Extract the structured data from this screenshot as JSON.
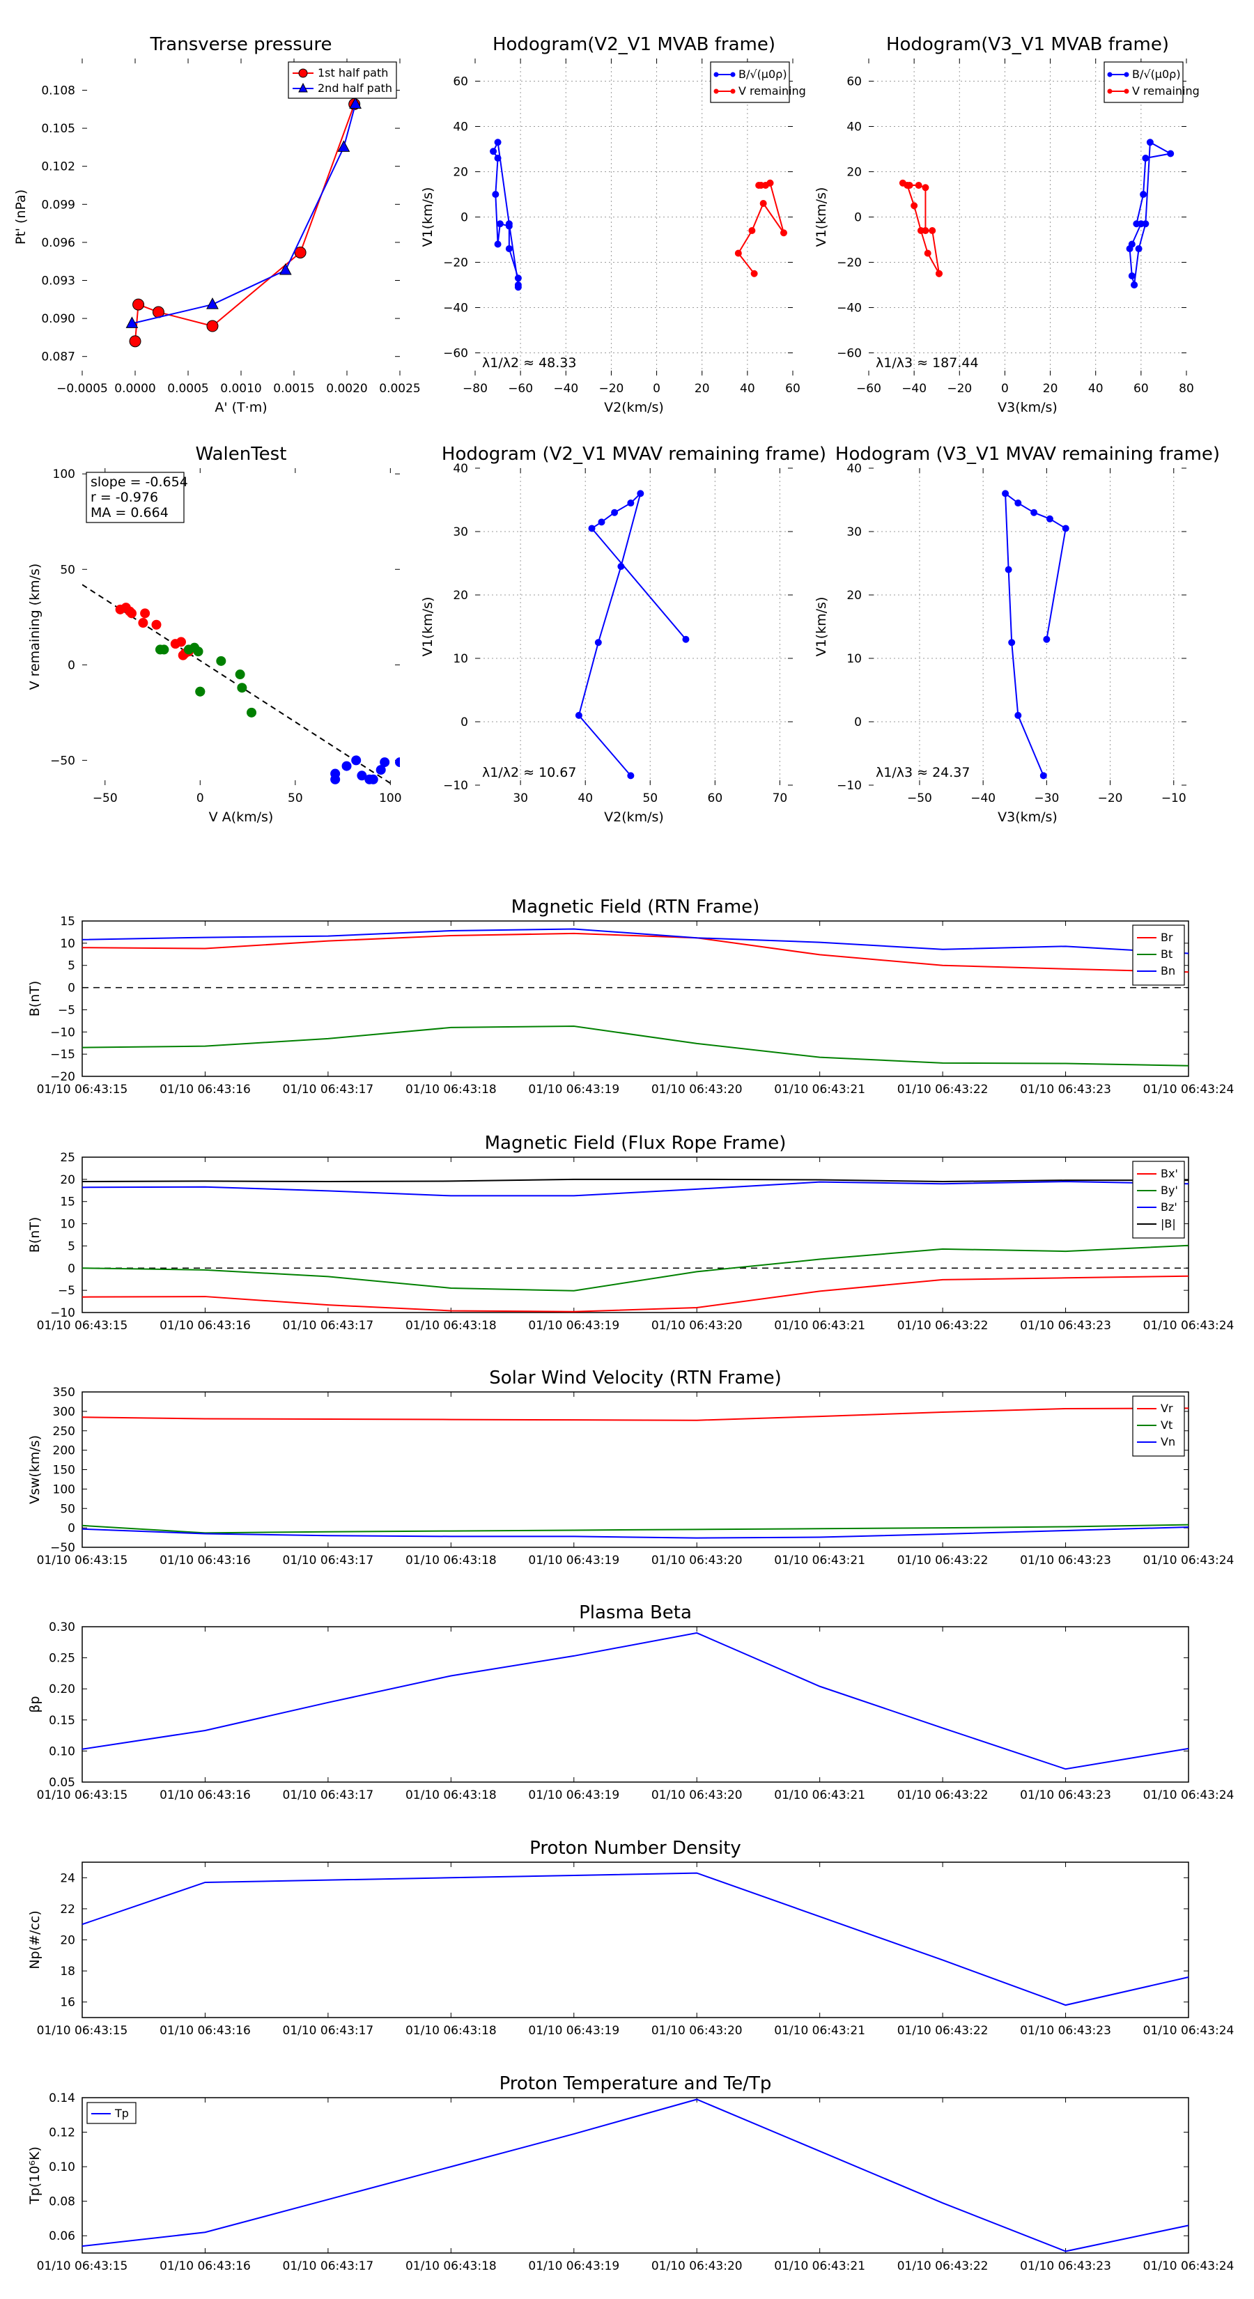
{
  "figure_title": "",
  "chart_data": [
    {
      "id": "pt",
      "type": "line",
      "title": "Transverse pressure",
      "xlabel": "A' (T·m)",
      "ylabel": "Pt' (nPa)",
      "xlim": [
        -0.0005,
        0.0025
      ],
      "ylim": [
        0.0855,
        0.1105
      ],
      "xticks": [
        -0.0005,
        0,
        0.0005,
        0.001,
        0.0015,
        0.002,
        0.0025
      ],
      "xticklabels": [
        "−0.0005",
        "0.0000",
        "0.0005",
        "0.0010",
        "0.0015",
        "0.0020",
        "0.0025"
      ],
      "yticks": [
        0.087,
        0.09,
        0.093,
        0.096,
        0.099,
        0.102,
        0.105,
        0.108
      ],
      "yticklabels": [
        "0.087",
        "0.090",
        "0.093",
        "0.096",
        "0.099",
        "0.102",
        "0.105",
        "0.108"
      ],
      "grid": false,
      "legend_position": "top-right",
      "series": [
        {
          "name": "1st half path",
          "color": "#ff0000",
          "marker": "circle",
          "x": [
            0.00207,
            0.00156,
            0.00073,
            0.00022,
            3e-05,
            0.0
          ],
          "y": [
            0.1069,
            0.0952,
            0.0894,
            0.0905,
            0.0911,
            0.0882
          ]
        },
        {
          "name": "2nd half path",
          "color": "#0000ff",
          "marker": "triangle",
          "x": [
            -3e-05,
            0.00073,
            0.00142,
            0.00197,
            0.00208
          ],
          "y": [
            0.0896,
            0.0911,
            0.0938,
            0.1035,
            0.1069
          ]
        }
      ]
    },
    {
      "id": "hodo1",
      "type": "line",
      "title": "Hodogram(V2_V1 MVAB frame)",
      "xlabel": "V2(km/s)",
      "ylabel": "V1(km/s)",
      "xlim": [
        -80,
        60
      ],
      "ylim": [
        -70,
        70
      ],
      "xticks": [
        -80,
        -60,
        -40,
        -20,
        0,
        20,
        40,
        60
      ],
      "xticklabels": [
        "−80",
        "−60",
        "−40",
        "−20",
        "0",
        "20",
        "40",
        "60"
      ],
      "yticks": [
        -60,
        -40,
        -20,
        0,
        20,
        40,
        60
      ],
      "yticklabels": [
        "−60",
        "−40",
        "−20",
        "0",
        "20",
        "40",
        "60"
      ],
      "grid": true,
      "legend_position": "top-right",
      "annotation": "λ1/λ2 ≈ 48.33",
      "annotation_position": "bottom-left",
      "series": [
        {
          "name": "B/√(μ0ρ)",
          "color": "#0000ff",
          "x": [
            -61,
            -61,
            -65,
            -65,
            -69,
            -70,
            -71,
            -70,
            -72,
            -70,
            -65,
            -61
          ],
          "y": [
            -31,
            -27,
            -14,
            -4,
            -3,
            -12,
            10,
            26,
            29,
            33,
            -3,
            -30
          ]
        },
        {
          "name": "V remaining",
          "color": "#ff0000",
          "x": [
            43,
            36,
            42,
            47,
            56,
            50,
            45,
            48,
            50,
            46
          ],
          "y": [
            -25,
            -16,
            -6,
            6,
            -7,
            15,
            14,
            14,
            15,
            14
          ]
        }
      ]
    },
    {
      "id": "hodo2",
      "type": "line",
      "title": "Hodogram(V3_V1 MVAB frame)",
      "xlabel": "V3(km/s)",
      "ylabel": "V1(km/s)",
      "xlim": [
        -60,
        80
      ],
      "ylim": [
        -70,
        70
      ],
      "xticks": [
        -60,
        -40,
        -20,
        0,
        20,
        40,
        60,
        80
      ],
      "xticklabels": [
        "−60",
        "−40",
        "−20",
        "0",
        "20",
        "40",
        "60",
        "80"
      ],
      "yticks": [
        -60,
        -40,
        -20,
        0,
        20,
        40,
        60
      ],
      "yticklabels": [
        "−60",
        "−40",
        "−20",
        "0",
        "20",
        "40",
        "60"
      ],
      "grid": true,
      "legend_position": "top-right",
      "annotation": "λ1/λ3 ≈ 187.44",
      "annotation_position": "bottom-left",
      "series": [
        {
          "name": "B/√(μ0ρ)",
          "color": "#0000ff",
          "x": [
            57,
            56,
            55,
            56,
            60,
            58,
            61,
            62,
            73,
            64,
            62,
            59,
            57
          ],
          "y": [
            -30,
            -26,
            -14,
            -12,
            -3,
            -3,
            10,
            26,
            28,
            33,
            -3,
            -14,
            -30
          ]
        },
        {
          "name": "V remaining",
          "color": "#ff0000",
          "x": [
            -29,
            -34,
            -37,
            -40,
            -43,
            -45,
            -42,
            -38,
            -35,
            -35,
            -32,
            -29
          ],
          "y": [
            -25,
            -16,
            -6,
            5,
            14,
            15,
            14,
            14,
            13,
            -6,
            -6,
            -25
          ]
        }
      ]
    },
    {
      "id": "walen",
      "type": "scatter",
      "title": "WalenTest",
      "xlabel": "V A(km/s)",
      "ylabel": "V remaining (km/s)",
      "xlim": [
        -62,
        105
      ],
      "ylim": [
        -63,
        103
      ],
      "xticks": [
        -50,
        0,
        50,
        100
      ],
      "xticklabels": [
        "−50",
        "0",
        "50",
        "100"
      ],
      "yticks": [
        -50,
        0,
        50,
        100
      ],
      "yticklabels": [
        "−50",
        "0",
        "50",
        "100"
      ],
      "grid": false,
      "stats": [
        "slope = -0.654",
        "r = -0.976",
        "MA = 0.664"
      ],
      "fit_line": {
        "x": [
          -62,
          100
        ],
        "y": [
          42,
          -62
        ],
        "color": "#000000"
      },
      "series": [
        {
          "name": "red",
          "color": "#ff0000",
          "x": [
            -42,
            -39,
            -37,
            -36,
            -30,
            -29,
            -23,
            -13,
            -10,
            -9,
            -8,
            -6
          ],
          "y": [
            29,
            30,
            28,
            27,
            22,
            27,
            21,
            11,
            12,
            5,
            6,
            7
          ]
        },
        {
          "name": "green",
          "color": "#008000",
          "x": [
            -21,
            -19,
            -6,
            -3,
            -1,
            0,
            11,
            21,
            22,
            27,
            0
          ],
          "y": [
            8,
            8,
            8,
            9,
            7,
            -14,
            2,
            -5,
            -12,
            -25,
            -14
          ]
        },
        {
          "name": "blue",
          "color": "#0000ff",
          "x": [
            71,
            71,
            77,
            82,
            85,
            89,
            91,
            95,
            97,
            105
          ],
          "y": [
            -57,
            -60,
            -53,
            -50,
            -58,
            -60,
            -60,
            -55,
            -51,
            -51
          ]
        }
      ]
    },
    {
      "id": "hodo3",
      "type": "line",
      "title": "Hodogram (V2_V1 MVAV remaining frame)",
      "xlabel": "V2(km/s)",
      "ylabel": "V1(km/s)",
      "xlim": [
        23,
        72
      ],
      "ylim": [
        -10,
        40
      ],
      "xticks": [
        30,
        40,
        50,
        60,
        70
      ],
      "xticklabels": [
        "30",
        "40",
        "50",
        "60",
        "70"
      ],
      "yticks": [
        -10,
        0,
        10,
        20,
        30,
        40
      ],
      "yticklabels": [
        "−10",
        "0",
        "10",
        "20",
        "30",
        "40"
      ],
      "grid": true,
      "annotation": "λ1/λ2 ≈ 10.67",
      "annotation_position": "bottom-left",
      "series": [
        {
          "name": "B",
          "color": "#0000ff",
          "x": [
            47,
            39,
            42,
            45.5,
            48.5,
            47,
            44.5,
            42.5,
            41,
            55.5
          ],
          "y": [
            -8.5,
            1,
            12.5,
            24.5,
            36,
            34.5,
            33,
            31.5,
            30.5,
            13
          ]
        }
      ]
    },
    {
      "id": "hodo4",
      "type": "line",
      "title": "Hodogram (V3_V1 MVAV remaining frame)",
      "xlabel": "V3(km/s)",
      "ylabel": "V1(km/s)",
      "xlim": [
        -58,
        -8
      ],
      "ylim": [
        -10,
        40
      ],
      "xticks": [
        -50,
        -40,
        -30,
        -20,
        -10
      ],
      "xticklabels": [
        "−50",
        "−40",
        "−30",
        "−20",
        "−10"
      ],
      "yticks": [
        -10,
        0,
        10,
        20,
        30,
        40
      ],
      "yticklabels": [
        "−10",
        "0",
        "10",
        "20",
        "30",
        "40"
      ],
      "grid": true,
      "annotation": "λ1/λ3 ≈ 24.37",
      "annotation_position": "bottom-left",
      "series": [
        {
          "name": "B",
          "color": "#0000ff",
          "x": [
            -30.5,
            -34.5,
            -35.5,
            -36,
            -36.5,
            -34.5,
            -32,
            -29.5,
            -27,
            -30
          ],
          "y": [
            -8.5,
            1,
            12.5,
            24,
            36,
            34.5,
            33,
            32,
            30.5,
            13
          ]
        }
      ]
    },
    {
      "id": "mag_rtn",
      "type": "line",
      "title": "Magnetic Field (RTN Frame)",
      "xlabel": "",
      "ylabel": "B(nT)",
      "ylim": [
        -20,
        15
      ],
      "yticks": [
        -20,
        -15,
        -10,
        -5,
        0,
        5,
        10,
        15
      ],
      "yticklabels": [
        "−20",
        "−15",
        "−10",
        "−5",
        "0",
        "5",
        "10",
        "15"
      ],
      "grid": false,
      "zero_line": true,
      "legend_position": "right",
      "series": [
        {
          "name": "Br",
          "color": "#ff0000",
          "values": [
            9,
            8.8,
            10.5,
            11.7,
            12.2,
            11.2,
            7.4,
            5,
            4.2,
            3.5
          ]
        },
        {
          "name": "Bt",
          "color": "#008000",
          "values": [
            -13.5,
            -13.2,
            -11.5,
            -9,
            -8.7,
            -12.6,
            -15.7,
            -17,
            -17.1,
            -17.6
          ]
        },
        {
          "name": "Bn",
          "color": "#0000ff",
          "values": [
            10.8,
            11.3,
            11.6,
            12.8,
            13.2,
            11.2,
            10.2,
            8.6,
            9.3,
            7.7
          ]
        }
      ]
    },
    {
      "id": "mag_fr",
      "type": "line",
      "title": "Magnetic Field (Flux Rope Frame)",
      "xlabel": "",
      "ylabel": "B(nT)",
      "ylim": [
        -10,
        25
      ],
      "yticks": [
        -10,
        -5,
        0,
        5,
        10,
        15,
        20,
        25
      ],
      "yticklabels": [
        "−10",
        "−5",
        "0",
        "5",
        "10",
        "15",
        "20",
        "25"
      ],
      "grid": false,
      "zero_line": true,
      "legend_position": "right",
      "series": [
        {
          "name": "Bx'",
          "color": "#ff0000",
          "values": [
            -6.5,
            -6.4,
            -8.3,
            -9.6,
            -9.8,
            -8.9,
            -5.2,
            -2.6,
            -2.2,
            -1.8
          ]
        },
        {
          "name": "By'",
          "color": "#008000",
          "values": [
            0,
            -0.4,
            -1.9,
            -4.5,
            -5.1,
            -0.8,
            2,
            4.3,
            3.8,
            5.1
          ]
        },
        {
          "name": "Bz'",
          "color": "#0000ff",
          "values": [
            18.2,
            18.3,
            17.4,
            16.3,
            16.3,
            17.8,
            19.4,
            19,
            19.5,
            19
          ]
        },
        {
          "name": "|B|",
          "color": "#000000",
          "values": [
            19.5,
            19.6,
            19.5,
            19.6,
            20,
            20,
            19.9,
            19.5,
            19.8,
            19.8
          ]
        }
      ]
    },
    {
      "id": "vsw",
      "type": "line",
      "title": "Solar Wind Velocity (RTN Frame)",
      "xlabel": "",
      "ylabel": "Vsw(km/s)",
      "ylim": [
        -50,
        350
      ],
      "yticks": [
        -50,
        0,
        50,
        100,
        150,
        200,
        250,
        300,
        350
      ],
      "yticklabels": [
        "−50",
        "0",
        "50",
        "100",
        "150",
        "200",
        "250",
        "300",
        "350"
      ],
      "grid": false,
      "legend_position": "right",
      "series": [
        {
          "name": "Vr",
          "color": "#ff0000",
          "values": [
            285,
            281,
            280,
            279,
            278,
            277,
            287,
            298,
            307,
            308
          ]
        },
        {
          "name": "Vt",
          "color": "#008000",
          "values": [
            6,
            -13,
            -10,
            -8,
            -6,
            -4,
            -2,
            0,
            3,
            8
          ]
        },
        {
          "name": "Vn",
          "color": "#0000ff",
          "values": [
            -3,
            -15,
            -20,
            -22,
            -22,
            -26,
            -24,
            -16,
            -7,
            2
          ]
        }
      ]
    },
    {
      "id": "beta",
      "type": "line",
      "title": "Plasma Beta",
      "xlabel": "",
      "ylabel": "βp",
      "ylim": [
        0.05,
        0.3
      ],
      "yticks": [
        0.05,
        0.1,
        0.15,
        0.2,
        0.25,
        0.3
      ],
      "yticklabels": [
        "0.05",
        "0.10",
        "0.15",
        "0.20",
        "0.25",
        "0.30"
      ],
      "grid": false,
      "series": [
        {
          "name": "βp",
          "color": "#0000ff",
          "values": [
            0.103,
            0.133,
            0.178,
            0.221,
            0.253,
            0.29,
            0.204,
            0.137,
            0.071,
            0.104
          ]
        }
      ]
    },
    {
      "id": "np",
      "type": "line",
      "title": "Proton Number Density",
      "xlabel": "",
      "ylabel": "Np(#/cc)",
      "ylim": [
        15,
        25
      ],
      "yticks": [
        16,
        18,
        20,
        22,
        24
      ],
      "yticklabels": [
        "16",
        "18",
        "20",
        "22",
        "24"
      ],
      "grid": false,
      "series": [
        {
          "name": "Np",
          "color": "#0000ff",
          "values": [
            21,
            23.7,
            23.85,
            24,
            24.15,
            24.3,
            21.5,
            18.7,
            15.8,
            17.6
          ]
        }
      ]
    },
    {
      "id": "tp",
      "type": "line",
      "title": "Proton Temperature and Te/Tp",
      "xlabel": "",
      "ylabel": "Tp(10⁶K)",
      "ylim": [
        0.05,
        0.14
      ],
      "yticks": [
        0.06,
        0.08,
        0.1,
        0.12,
        0.14
      ],
      "yticklabels": [
        "0.06",
        "0.08",
        "0.10",
        "0.12",
        "0.14"
      ],
      "grid": false,
      "legend_position": "top-left",
      "series": [
        {
          "name": "Tp",
          "color": "#0000ff",
          "values": [
            0.054,
            0.062,
            0.081,
            0.1,
            0.119,
            0.139,
            0.109,
            0.079,
            0.051,
            0.066
          ]
        }
      ]
    }
  ],
  "time_axis": [
    "01/10 06:43:15",
    "01/10 06:43:16",
    "01/10 06:43:17",
    "01/10 06:43:18",
    "01/10 06:43:19",
    "01/10 06:43:20",
    "01/10 06:43:21",
    "01/10 06:43:22",
    "01/10 06:43:23",
    "01/10 06:43:24"
  ]
}
